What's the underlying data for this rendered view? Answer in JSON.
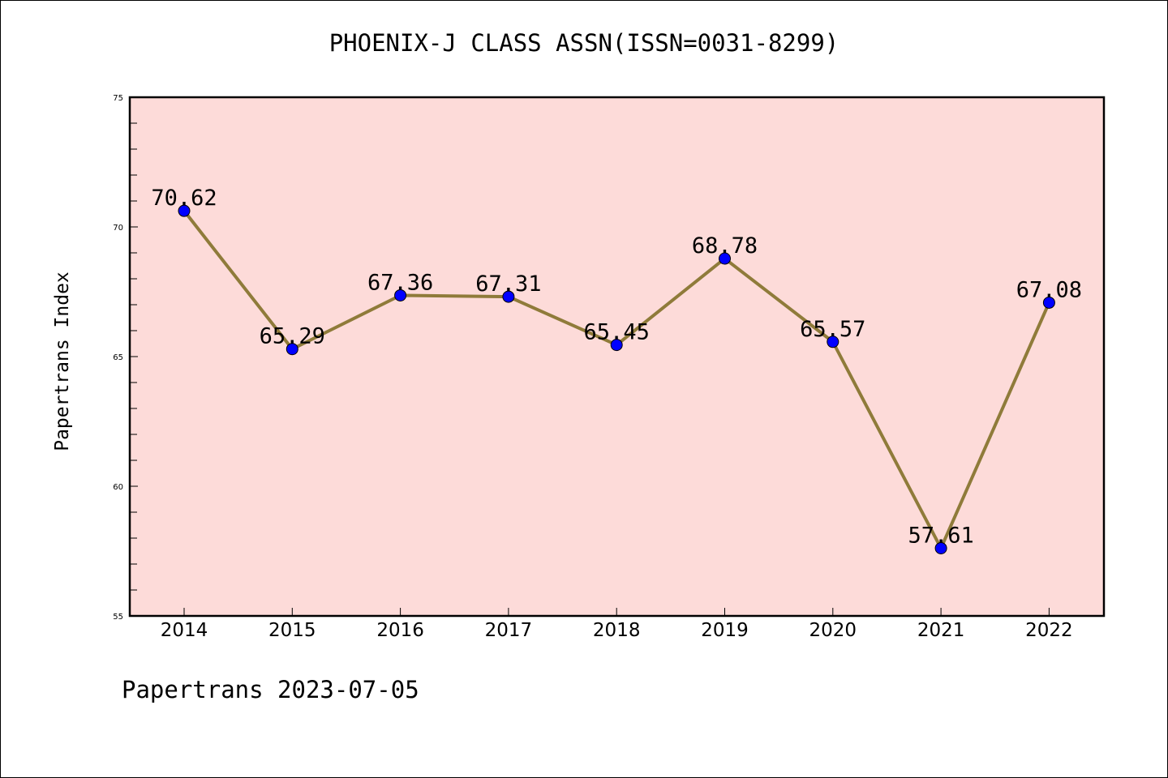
{
  "chart_data": {
    "type": "line",
    "title": "PHOENIX-J CLASS ASSN(ISSN=0031-8299)",
    "xlabel": "",
    "ylabel": "Papertrans Index",
    "footer": "Papertrans 2023-07-05",
    "categories": [
      "2014",
      "2015",
      "2016",
      "2017",
      "2018",
      "2019",
      "2020",
      "2021",
      "2022"
    ],
    "values": [
      70.62,
      65.29,
      67.36,
      67.31,
      65.45,
      68.78,
      65.57,
      57.61,
      67.08
    ],
    "value_labels": [
      "70.62",
      "65.29",
      "67.36",
      "67.31",
      "65.45",
      "68.78",
      "65.57",
      "57.61",
      "67.08"
    ],
    "ylim": [
      55,
      75
    ],
    "yticks": [
      "55",
      "60",
      "65",
      "70",
      "75"
    ],
    "grid": false,
    "colors": {
      "plot_background": "#fddbd9",
      "line": "#8f7b3a",
      "marker": "#0000ff"
    }
  }
}
